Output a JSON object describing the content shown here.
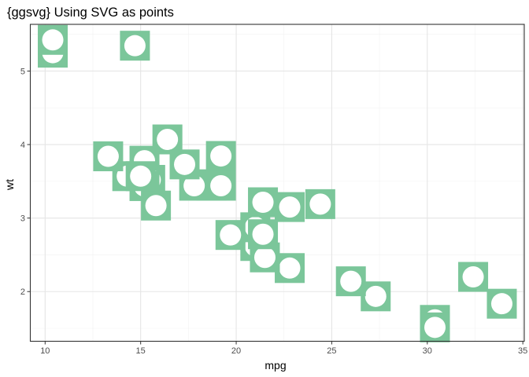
{
  "chart_data": {
    "type": "scatter",
    "title": "{ggsvg} Using SVG as points",
    "xlabel": "mpg",
    "ylabel": "wt",
    "xlim": [
      9.225,
      35.075
    ],
    "ylim": [
      1.3241,
      5.6354
    ],
    "x_ticks": [
      10,
      15,
      20,
      25,
      30,
      35
    ],
    "y_ticks": [
      2,
      3,
      4,
      5
    ],
    "x_tick_labels": [
      "10",
      "15",
      "20",
      "25",
      "30",
      "35"
    ],
    "y_tick_labels": [
      "2",
      "3",
      "4",
      "5"
    ],
    "grid": true,
    "theme": "bw",
    "marker": "green square with white circle (SVG glyph)",
    "marker_color": "#7bc69a",
    "marker_inner_color": "#ffffff",
    "points": [
      {
        "x": 21.0,
        "y": 2.62
      },
      {
        "x": 21.0,
        "y": 2.875
      },
      {
        "x": 22.8,
        "y": 2.32
      },
      {
        "x": 21.4,
        "y": 3.215
      },
      {
        "x": 18.7,
        "y": 3.44
      },
      {
        "x": 18.1,
        "y": 3.46
      },
      {
        "x": 14.3,
        "y": 3.57
      },
      {
        "x": 24.4,
        "y": 3.19
      },
      {
        "x": 22.8,
        "y": 3.15
      },
      {
        "x": 19.2,
        "y": 3.44
      },
      {
        "x": 17.8,
        "y": 3.44
      },
      {
        "x": 16.4,
        "y": 4.07
      },
      {
        "x": 17.3,
        "y": 3.73
      },
      {
        "x": 15.2,
        "y": 3.78
      },
      {
        "x": 10.4,
        "y": 5.25
      },
      {
        "x": 10.4,
        "y": 5.424
      },
      {
        "x": 14.7,
        "y": 5.345
      },
      {
        "x": 32.4,
        "y": 2.2
      },
      {
        "x": 30.4,
        "y": 1.615
      },
      {
        "x": 33.9,
        "y": 1.835
      },
      {
        "x": 21.5,
        "y": 2.465
      },
      {
        "x": 15.5,
        "y": 3.52
      },
      {
        "x": 15.2,
        "y": 3.435
      },
      {
        "x": 13.3,
        "y": 3.84
      },
      {
        "x": 19.2,
        "y": 3.845
      },
      {
        "x": 27.3,
        "y": 1.935
      },
      {
        "x": 26.0,
        "y": 2.14
      },
      {
        "x": 30.4,
        "y": 1.513
      },
      {
        "x": 15.8,
        "y": 3.17
      },
      {
        "x": 19.7,
        "y": 2.77
      },
      {
        "x": 15.0,
        "y": 3.57
      },
      {
        "x": 21.4,
        "y": 2.78
      }
    ]
  }
}
